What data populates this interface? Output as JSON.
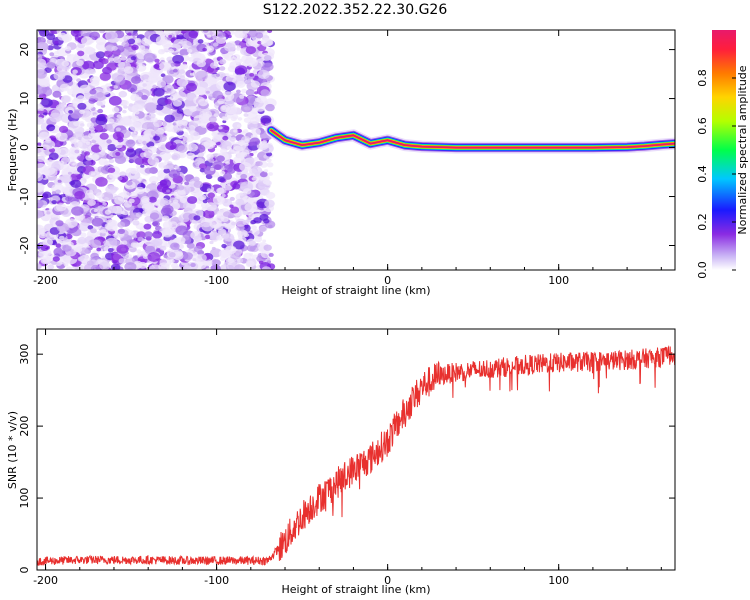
{
  "title": "S122.2022.352.22.30.G26",
  "colors": {
    "snr_line": "#e8302e",
    "scatter_cloud": "#8a2be2",
    "track_core": "#e8196b",
    "axis": "#000000"
  },
  "chart_data": [
    {
      "type": "heatmap",
      "xlabel": "Height of straight line (km)",
      "ylabel": "Frequency (Hz)",
      "xlim": [
        -205,
        168
      ],
      "ylim": [
        -25,
        24
      ],
      "xticks": [
        -200,
        -100,
        0,
        100
      ],
      "yticks": [
        -20,
        -10,
        0,
        10,
        20
      ],
      "colorbar": {
        "label": "Normalized spectral amplitude",
        "range": [
          0,
          1
        ],
        "ticks": [
          0.0,
          0.2,
          0.4,
          0.6,
          0.8
        ],
        "colormap": "rainbow-white-to-magenta"
      },
      "noise_region_x": [
        -205,
        -68
      ],
      "ridge": {
        "x": [
          -68,
          -60,
          -50,
          -40,
          -30,
          -20,
          -10,
          0,
          10,
          20,
          40,
          80,
          120,
          140,
          150,
          160,
          168
        ],
        "freq": [
          3.5,
          1.5,
          0.5,
          1.0,
          2.0,
          2.5,
          0.8,
          1.5,
          0.5,
          0.2,
          0.0,
          0.0,
          0.0,
          0.1,
          0.3,
          0.6,
          0.8
        ]
      }
    },
    {
      "type": "line",
      "xlabel": "Height of straight line (km)",
      "ylabel": "SNR (10 * v/v)",
      "xlim": [
        -205,
        168
      ],
      "ylim": [
        0,
        335
      ],
      "xticks": [
        -200,
        -100,
        0,
        100
      ],
      "yticks": [
        0,
        100,
        200,
        300
      ],
      "series": [
        {
          "x": [
            -205,
            -180,
            -160,
            -140,
            -120,
            -100,
            -80,
            -70,
            -60,
            -50,
            -40,
            -30,
            -20,
            -10,
            0,
            10,
            20,
            30,
            40,
            60,
            80,
            100,
            120,
            140,
            160,
            168
          ],
          "snr": [
            12,
            14,
            14,
            14,
            13,
            13,
            13,
            13,
            40,
            75,
            100,
            120,
            140,
            155,
            180,
            220,
            255,
            270,
            275,
            280,
            285,
            288,
            290,
            292,
            296,
            300
          ]
        }
      ]
    }
  ]
}
